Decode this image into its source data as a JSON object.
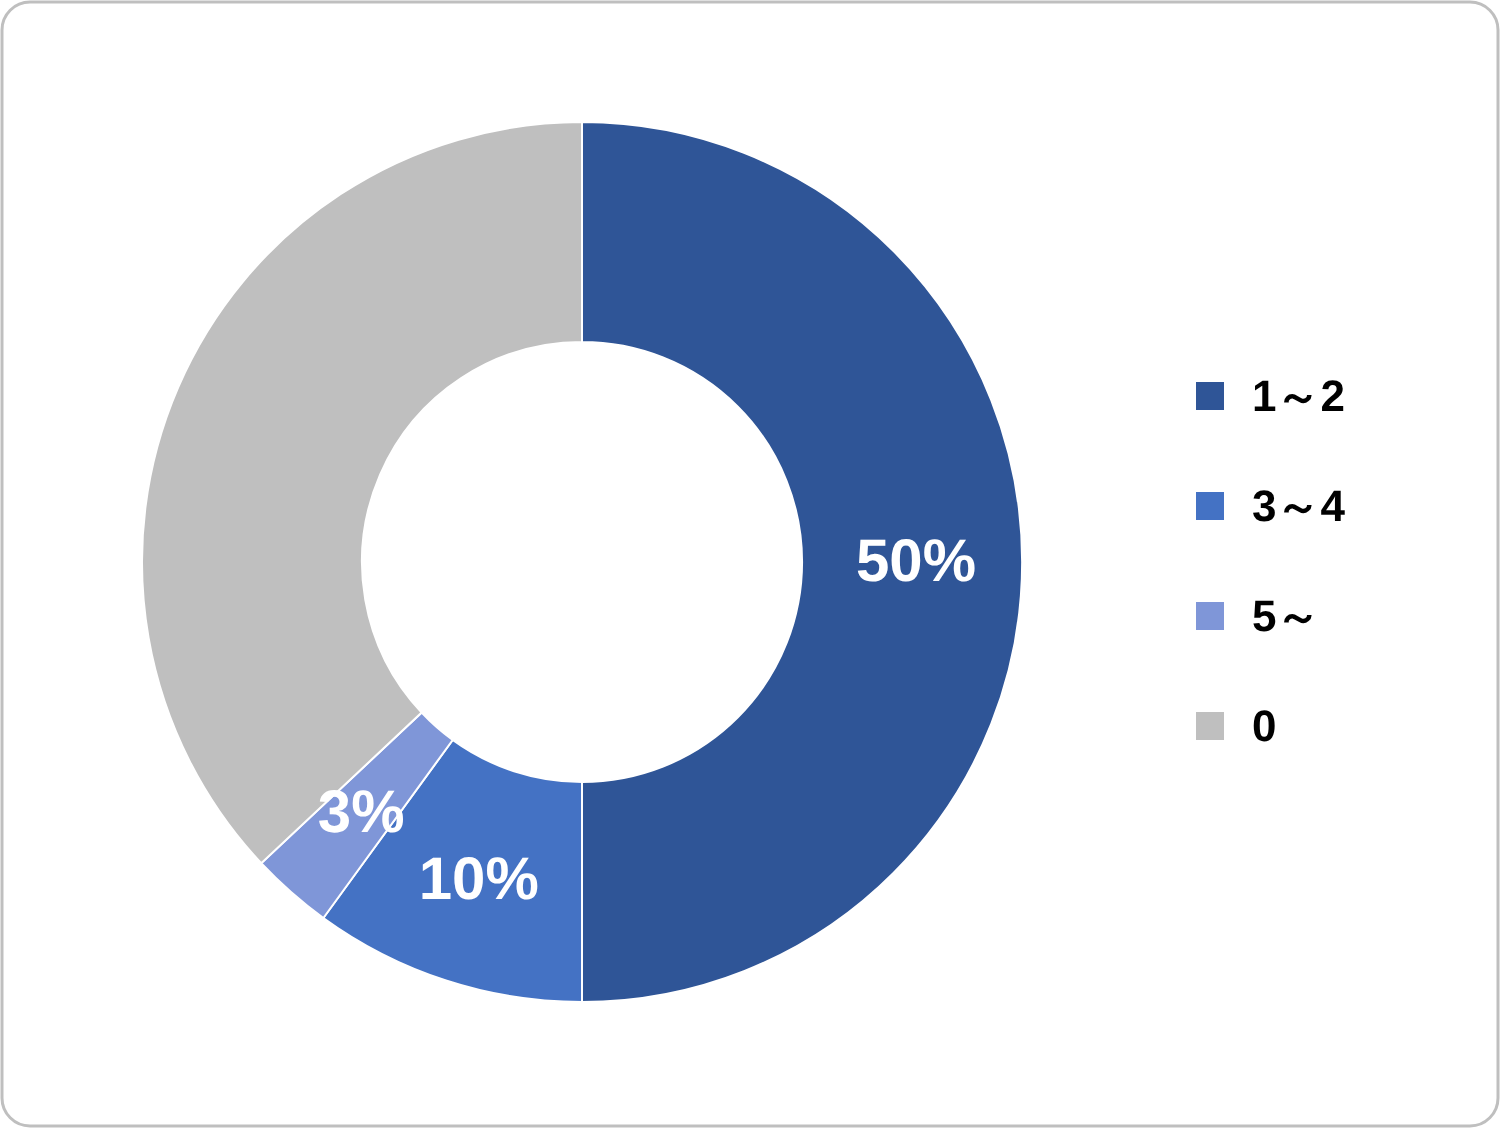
{
  "chart_data": {
    "type": "donut",
    "categories": [
      "1～2",
      "3～4",
      "5～",
      "0"
    ],
    "values": [
      50,
      10,
      3,
      37
    ],
    "colors": [
      "#2f5597",
      "#4472c4",
      "#7f96d8",
      "#bfbfbf"
    ],
    "value_labels": [
      "50%",
      "10%",
      "3%",
      null
    ],
    "legend": "right"
  }
}
